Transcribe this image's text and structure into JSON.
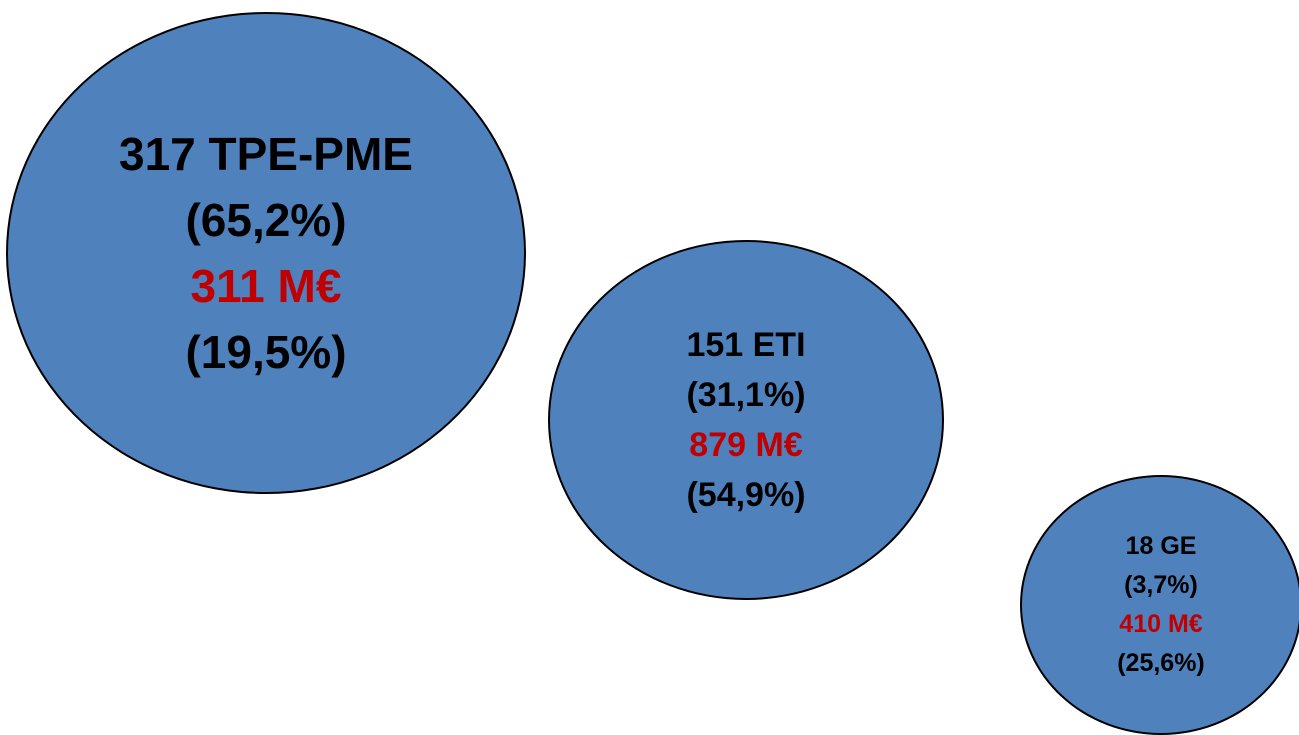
{
  "colors": {
    "bubble_fill": "#4f81bd",
    "text": "#000000",
    "amount_text": "#c00000",
    "outline": "#000000"
  },
  "bubbles": [
    {
      "count_label": "317 TPE-PME",
      "count_share": "(65,2%)",
      "amount": "311 M€",
      "amount_share": "(19,5%)"
    },
    {
      "count_label": "151 ETI",
      "count_share": "(31,1%)",
      "amount": "879 M€",
      "amount_share": "(54,9%)"
    },
    {
      "count_label": "18 GE",
      "count_share": "(3,7%)",
      "amount": "410 M€",
      "amount_share": "(25,6%)"
    }
  ]
}
